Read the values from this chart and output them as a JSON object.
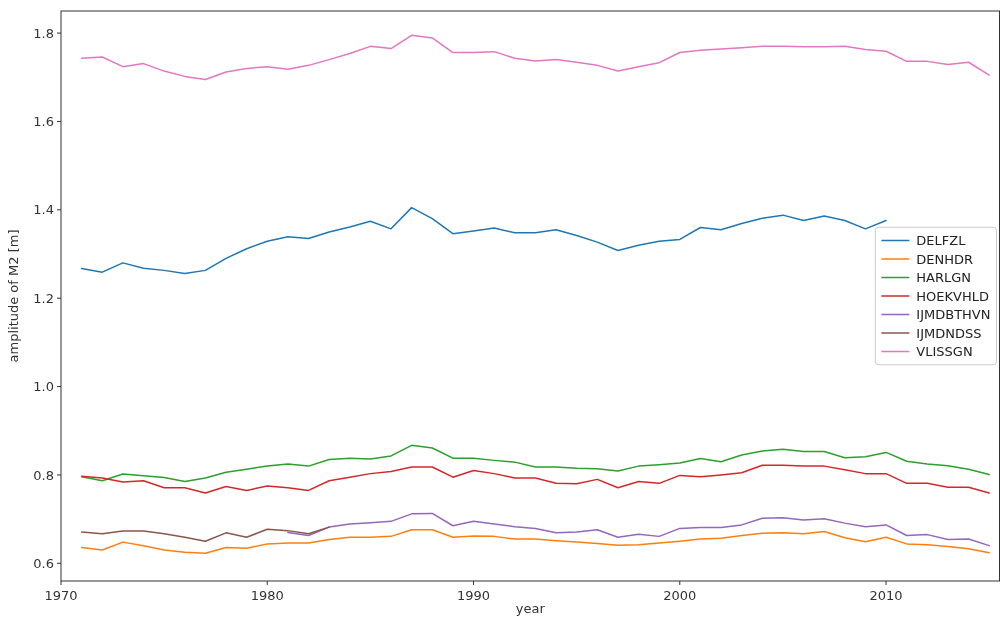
{
  "chart_data": {
    "type": "line",
    "xlabel": "year",
    "ylabel": "amplitude of M2 [m]",
    "x": [
      1971,
      1972,
      1973,
      1974,
      1975,
      1976,
      1977,
      1978,
      1979,
      1980,
      1981,
      1982,
      1983,
      1984,
      1985,
      1986,
      1987,
      1988,
      1989,
      1990,
      1991,
      1992,
      1993,
      1994,
      1995,
      1996,
      1997,
      1998,
      1999,
      2000,
      2001,
      2002,
      2003,
      2004,
      2005,
      2006,
      2007,
      2008,
      2009,
      2010,
      2011,
      2012,
      2013,
      2014,
      2015
    ],
    "series": [
      {
        "name": "DELFZL",
        "color": "#1f77b4",
        "values": [
          1.267,
          1.259,
          1.28,
          1.268,
          1.263,
          1.256,
          1.263,
          1.29,
          1.312,
          1.329,
          1.339,
          1.335,
          1.35,
          1.361,
          1.374,
          1.357,
          1.405,
          1.38,
          1.346,
          1.352,
          1.359,
          1.348,
          1.348,
          1.355,
          1.342,
          1.327,
          1.308,
          1.32,
          1.329,
          1.333,
          1.36,
          1.355,
          1.369,
          1.381,
          1.388,
          1.376,
          1.386,
          1.376,
          1.357,
          1.376,
          null,
          null,
          null,
          null,
          null
        ]
      },
      {
        "name": "DENHDR",
        "color": "#ff7f0e",
        "values": [
          0.636,
          0.63,
          0.648,
          0.64,
          0.63,
          0.625,
          0.623,
          0.636,
          0.634,
          0.644,
          0.646,
          0.646,
          0.654,
          0.659,
          0.659,
          0.661,
          0.676,
          0.676,
          0.659,
          0.662,
          0.661,
          0.655,
          0.655,
          0.651,
          0.648,
          0.645,
          0.641,
          0.642,
          0.646,
          0.65,
          0.655,
          0.657,
          0.663,
          0.668,
          0.669,
          0.667,
          0.672,
          0.658,
          0.649,
          0.659,
          0.644,
          0.642,
          0.638,
          0.633,
          0.624
        ]
      },
      {
        "name": "HARLGN",
        "color": "#2ca02c",
        "values": [
          0.796,
          0.787,
          0.802,
          0.798,
          0.794,
          0.785,
          0.793,
          0.806,
          0.813,
          0.82,
          0.825,
          0.82,
          0.835,
          0.838,
          0.836,
          0.843,
          0.867,
          0.861,
          0.838,
          0.838,
          0.833,
          0.829,
          0.818,
          0.818,
          0.815,
          0.814,
          0.809,
          0.82,
          0.823,
          0.827,
          0.837,
          0.83,
          0.845,
          0.854,
          0.858,
          0.853,
          0.853,
          0.839,
          0.841,
          0.851,
          0.831,
          0.825,
          0.821,
          0.813,
          0.801
        ]
      },
      {
        "name": "HOEKVHLD",
        "color": "#d62728",
        "values": [
          0.797,
          0.793,
          0.784,
          0.787,
          0.771,
          0.771,
          0.759,
          0.774,
          0.765,
          0.775,
          0.771,
          0.765,
          0.787,
          0.795,
          0.803,
          0.808,
          0.818,
          0.818,
          0.795,
          0.81,
          0.803,
          0.793,
          0.793,
          0.781,
          0.78,
          0.79,
          0.771,
          0.785,
          0.781,
          0.799,
          0.796,
          0.8,
          0.805,
          0.822,
          0.822,
          0.82,
          0.82,
          0.812,
          0.803,
          0.803,
          0.781,
          0.781,
          0.772,
          0.772,
          0.759
        ]
      },
      {
        "name": "IJMDBTHVN",
        "color": "#9467bd",
        "values": [
          null,
          null,
          null,
          null,
          null,
          null,
          null,
          null,
          null,
          null,
          0.67,
          0.663,
          0.682,
          0.689,
          0.692,
          0.695,
          0.712,
          0.713,
          0.685,
          0.695,
          0.689,
          0.683,
          0.679,
          0.669,
          0.671,
          0.676,
          0.659,
          0.666,
          0.661,
          0.679,
          0.681,
          0.681,
          0.687,
          0.702,
          0.703,
          0.698,
          0.701,
          0.691,
          0.683,
          0.687,
          0.663,
          0.665,
          0.654,
          0.655,
          0.64
        ]
      },
      {
        "name": "IJMDNDSS",
        "color": "#8c564b",
        "values": [
          0.671,
          0.667,
          0.673,
          0.673,
          0.667,
          0.659,
          0.65,
          0.669,
          0.659,
          0.677,
          0.674,
          0.667,
          0.682,
          null,
          null,
          null,
          null,
          null,
          null,
          null,
          null,
          null,
          null,
          null,
          null,
          null,
          null,
          null,
          null,
          null,
          null,
          null,
          null,
          null,
          null,
          null,
          null,
          null,
          null,
          null,
          null,
          null,
          null,
          null,
          null
        ]
      },
      {
        "name": "VLISSGN",
        "color": "#e377c2",
        "values": [
          1.743,
          1.746,
          1.724,
          1.731,
          1.714,
          1.702,
          1.695,
          1.712,
          1.72,
          1.724,
          1.718,
          1.727,
          1.74,
          1.754,
          1.77,
          1.765,
          1.795,
          1.789,
          1.756,
          1.756,
          1.758,
          1.743,
          1.737,
          1.74,
          1.734,
          1.727,
          1.714,
          1.724,
          1.733,
          1.756,
          1.761,
          1.764,
          1.767,
          1.77,
          1.77,
          1.769,
          1.769,
          1.77,
          1.763,
          1.759,
          1.736,
          1.736,
          1.729,
          1.734,
          1.705
        ]
      }
    ],
    "xlim": [
      1970,
      2015.5
    ],
    "xticks": [
      1970,
      1980,
      1990,
      2000,
      2010
    ],
    "ylim": [
      0.56,
      1.85
    ],
    "yticks": [
      0.6,
      0.8,
      {
        "value": 1.0,
        "label": "1.0"
      },
      1.2,
      1.4,
      1.6,
      1.8
    ],
    "legend": "right"
  }
}
